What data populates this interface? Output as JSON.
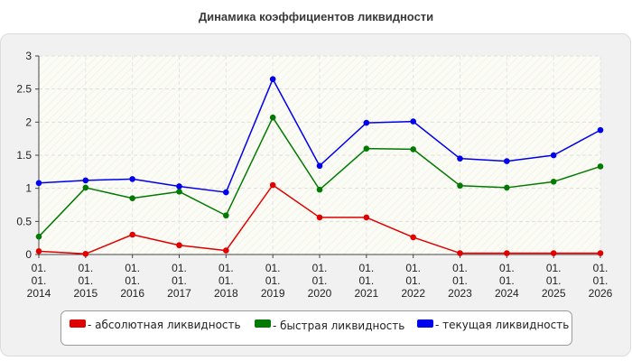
{
  "chart_data": {
    "type": "line",
    "title": "Динамика коэффициентов ликвидности",
    "xlabel": "",
    "ylabel": "",
    "categories": [
      [
        "01.",
        "01.",
        "2014"
      ],
      [
        "01.",
        "01.",
        "2015"
      ],
      [
        "01.",
        "01.",
        "2016"
      ],
      [
        "01.",
        "01.",
        "2017"
      ],
      [
        "01.",
        "01.",
        "2018"
      ],
      [
        "01.",
        "01.",
        "2019"
      ],
      [
        "01.",
        "01.",
        "2020"
      ],
      [
        "01.",
        "01.",
        "2021"
      ],
      [
        "01.",
        "01.",
        "2022"
      ],
      [
        "01.",
        "01.",
        "2023"
      ],
      [
        "01.",
        "01.",
        "2024"
      ],
      [
        "01.",
        "01.",
        "2025"
      ],
      [
        "01.",
        "01.",
        "2026"
      ]
    ],
    "ylim": [
      0,
      3
    ],
    "yticks": [
      "0",
      "0.5",
      "1",
      "1.5",
      "2",
      "2.5",
      "3"
    ],
    "ytick_values": [
      0,
      0.5,
      1,
      1.5,
      2,
      2.5,
      3
    ],
    "grid": true,
    "legend_position": "bottom",
    "series": [
      {
        "name": "- абсолютная ликвидность",
        "color": "#e00000",
        "values": [
          0.05,
          0.01,
          0.3,
          0.14,
          0.06,
          1.05,
          0.56,
          0.56,
          0.26,
          0.02,
          0.02,
          0.02,
          0.02
        ]
      },
      {
        "name": "- быстрая ликвидность",
        "color": "#007a00",
        "values": [
          0.27,
          1.01,
          0.85,
          0.95,
          0.59,
          2.07,
          0.98,
          1.6,
          1.59,
          1.04,
          1.01,
          1.1,
          1.33
        ]
      },
      {
        "name": "- текущая ликвидность",
        "color": "#0000ee",
        "values": [
          1.08,
          1.12,
          1.14,
          1.03,
          0.94,
          2.65,
          1.34,
          1.99,
          2.01,
          1.45,
          1.41,
          1.5,
          1.88
        ]
      }
    ]
  }
}
